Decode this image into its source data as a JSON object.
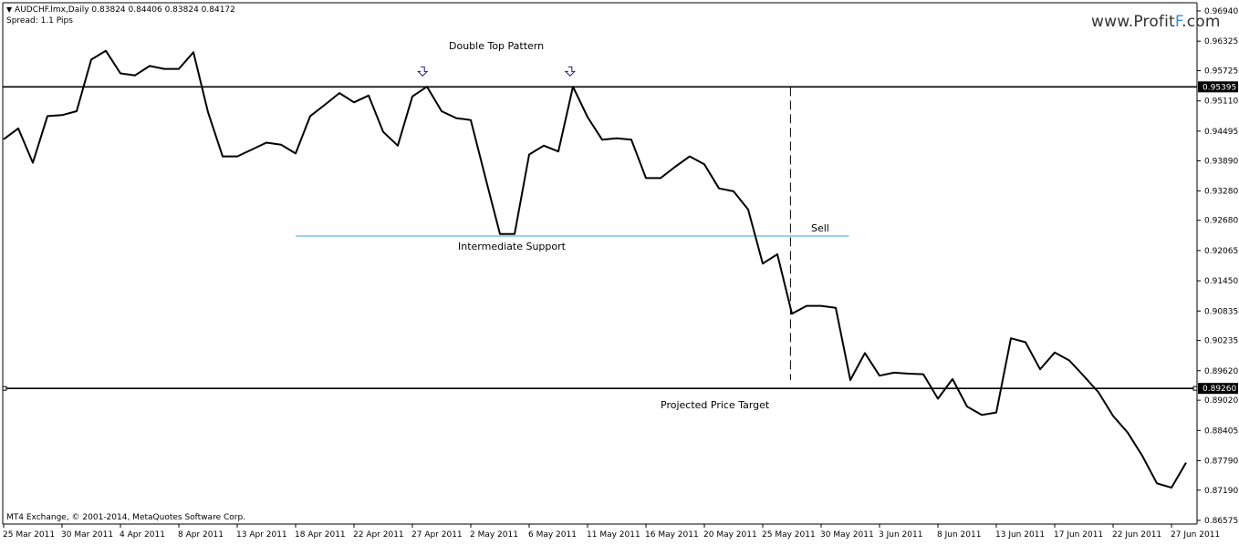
{
  "header": {
    "symbol_line": "AUDCHF.lmx,Daily  0.83824 0.84406 0.83824 0.84172",
    "spread": "Spread: 1.1 Pips"
  },
  "watermark": {
    "prefix": "www.Profit",
    "highlight": "F",
    "suffix": ".com",
    "highlight_color": "#3a8fd6"
  },
  "footer": {
    "copyright": "MT4 Exchange, © 2001-2014, MetaQuotes Software Corp."
  },
  "annotations": {
    "title": "Double Top Pattern",
    "support": "Intermediate Support",
    "sell": "Sell",
    "target": "Projected Price Target"
  },
  "colors": {
    "price_line": "#000000",
    "support_line": "#3aa0d8",
    "marker": "#1a1a8c",
    "current_label_bg": "#000000",
    "current_label_text": "#ffffff"
  },
  "chart_data": {
    "type": "line",
    "ylim": [
      0.86575,
      0.9694
    ],
    "y_ticks": [
      "0.96940",
      "0.96325",
      "0.95725",
      "0.95110",
      "0.94495",
      "0.93890",
      "0.93280",
      "0.92680",
      "0.92065",
      "0.91450",
      "0.90835",
      "0.90235",
      "0.89620",
      "0.89020",
      "0.88405",
      "0.87790",
      "0.87190",
      "0.86575"
    ],
    "x_tick_labels": [
      "25 Mar 2011",
      "30 Mar 2011",
      "4 Apr 2011",
      "8 Apr 2011",
      "13 Apr 2011",
      "18 Apr 2011",
      "22 Apr 2011",
      "27 Apr 2011",
      "2 May 2011",
      "6 May 2011",
      "11 May 2011",
      "16 May 2011",
      "20 May 2011",
      "25 May 2011",
      "30 May 2011",
      "3 Jun 2011",
      "8 Jun 2011",
      "13 Jun 2011",
      "17 Jun 2011",
      "22 Jun 2011",
      "27 Jun 2011"
    ],
    "series": [
      {
        "values": [
          0.9433,
          0.9455,
          0.9385,
          0.948,
          0.9482,
          0.949,
          0.9595,
          0.9613,
          0.9567,
          0.9563,
          0.9582,
          0.9576,
          0.9576,
          0.961,
          0.9488,
          0.9398,
          0.9398,
          0.9412,
          0.9426,
          0.9422,
          0.9404,
          0.948,
          0.9503,
          0.9527,
          0.9508,
          0.9522,
          0.9448,
          0.942,
          0.952,
          0.954,
          0.949,
          0.9476,
          0.9472,
          0.9355,
          0.924,
          0.924,
          0.9402,
          0.942,
          0.9408,
          0.954,
          0.9478,
          0.9432,
          0.9435,
          0.9432,
          0.9354,
          0.9354,
          0.9377,
          0.9398,
          0.9382,
          0.9333,
          0.9327,
          0.929,
          0.918,
          0.9199,
          0.9078,
          0.9094,
          0.9094,
          0.909,
          0.8943,
          0.8998,
          0.8952,
          0.8958,
          0.8956,
          0.8955,
          0.8905,
          0.8945,
          0.8889,
          0.8872,
          0.8877,
          0.9028,
          0.902,
          0.8965,
          0.8999,
          0.8983,
          0.8951,
          0.8918,
          0.887,
          0.8836,
          0.8789,
          0.8733,
          0.8724,
          0.8775
        ]
      }
    ],
    "horizontal_lines": [
      {
        "label": "Double Top Pattern",
        "value": 0.95395,
        "price_label": "0.95395"
      },
      {
        "label": "Projected Price Target",
        "value": 0.8926,
        "price_label": "0.89260"
      },
      {
        "label": "Intermediate Support",
        "value": 0.9236
      }
    ]
  }
}
